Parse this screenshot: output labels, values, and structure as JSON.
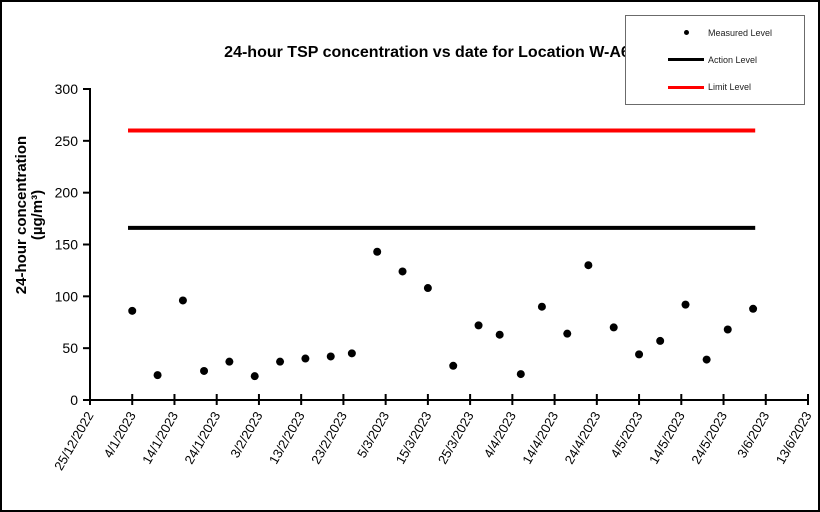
{
  "window": {
    "background": "#ffffff",
    "border_color": "#000000"
  },
  "legend": {
    "items": [
      {
        "label": "Measured Level",
        "marker": "dot",
        "color": "#000000"
      },
      {
        "label": "Action Level",
        "marker": "line",
        "color": "#000000"
      },
      {
        "label": "Limit Level",
        "marker": "line",
        "color": "#ff0000"
      }
    ]
  },
  "chart_data": {
    "type": "scatter",
    "title": "24-hour TSP concentration vs date for Location W-A6",
    "ylabel_line1": "24-hour concentration",
    "ylabel_line2": "(µg/m³)",
    "xlabel": "",
    "ylim": [
      0,
      300
    ],
    "yticks": [
      0,
      50,
      100,
      150,
      200,
      250,
      300
    ],
    "xtick_labels": [
      "25/12/2022",
      "4/1/2023",
      "14/1/2023",
      "24/1/2023",
      "3/2/2023",
      "13/2/2023",
      "23/2/2023",
      "5/3/2023",
      "15/3/2023",
      "25/3/2023",
      "4/4/2023",
      "14/4/2023",
      "24/4/2023",
      "4/5/2023",
      "14/5/2023",
      "24/5/2023",
      "3/6/2023",
      "13/6/2023"
    ],
    "xtick_interval_days": 10,
    "x_start_date": "25/12/2022",
    "x_total_days": 170,
    "grid": false,
    "legend_position": "top-right",
    "axis_color": "#000000",
    "series": [
      {
        "name": "Measured Level",
        "kind": "scatter",
        "marker": "dot",
        "color": "#000000",
        "points": [
          {
            "date": "4/1/2023",
            "day": 10,
            "value": 86
          },
          {
            "date": "10/1/2023",
            "day": 16,
            "value": 24
          },
          {
            "date": "16/1/2023",
            "day": 22,
            "value": 96
          },
          {
            "date": "21/1/2023",
            "day": 27,
            "value": 28
          },
          {
            "date": "27/1/2023",
            "day": 33,
            "value": 37
          },
          {
            "date": "2/2/2023",
            "day": 39,
            "value": 23
          },
          {
            "date": "8/2/2023",
            "day": 45,
            "value": 37
          },
          {
            "date": "14/2/2023",
            "day": 51,
            "value": 40
          },
          {
            "date": "20/2/2023",
            "day": 57,
            "value": 42
          },
          {
            "date": "25/2/2023",
            "day": 62,
            "value": 45
          },
          {
            "date": "3/3/2023",
            "day": 68,
            "value": 143
          },
          {
            "date": "9/3/2023",
            "day": 74,
            "value": 124
          },
          {
            "date": "15/3/2023",
            "day": 80,
            "value": 108
          },
          {
            "date": "21/3/2023",
            "day": 86,
            "value": 33
          },
          {
            "date": "27/3/2023",
            "day": 92,
            "value": 72
          },
          {
            "date": "1/4/2023",
            "day": 97,
            "value": 63
          },
          {
            "date": "6/4/2023",
            "day": 102,
            "value": 25
          },
          {
            "date": "11/4/2023",
            "day": 107,
            "value": 90
          },
          {
            "date": "17/4/2023",
            "day": 113,
            "value": 64
          },
          {
            "date": "22/4/2023",
            "day": 118,
            "value": 130
          },
          {
            "date": "28/4/2023",
            "day": 124,
            "value": 70
          },
          {
            "date": "4/5/2023",
            "day": 130,
            "value": 44
          },
          {
            "date": "9/5/2023",
            "day": 135,
            "value": 57
          },
          {
            "date": "15/5/2023",
            "day": 141,
            "value": 92
          },
          {
            "date": "20/5/2023",
            "day": 146,
            "value": 39
          },
          {
            "date": "25/5/2023",
            "day": 151,
            "value": 68
          },
          {
            "date": "31/5/2023",
            "day": 157,
            "value": 88
          }
        ]
      },
      {
        "name": "Action Level",
        "kind": "hline",
        "color": "#000000",
        "value": 166,
        "start_day": 9,
        "end_day": 157.5
      },
      {
        "name": "Limit Level",
        "kind": "hline",
        "color": "#ff0000",
        "value": 260,
        "start_day": 9,
        "end_day": 157.5
      }
    ]
  }
}
